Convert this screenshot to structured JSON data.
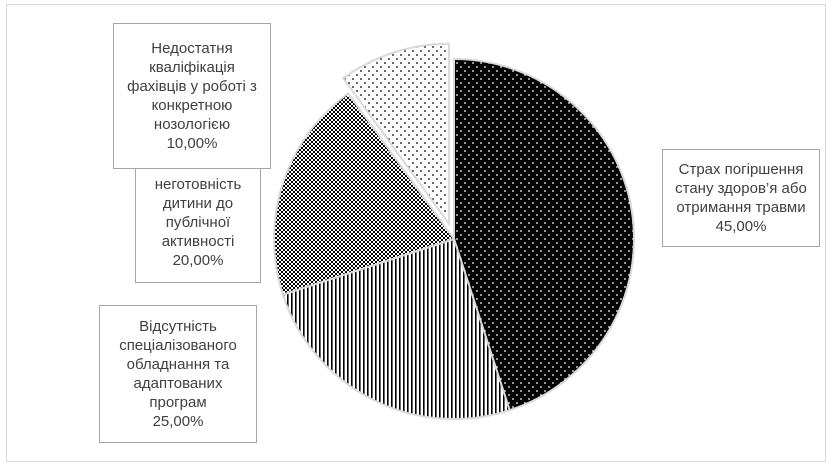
{
  "chart_data": {
    "type": "pie",
    "slices": [
      {
        "label": "Страх погіршення стану здоров’я або отримання травми",
        "value": 45.0,
        "value_label": "45,00%",
        "pattern": "dots-dark"
      },
      {
        "label": "Відсутність спеціалізованого обладнання та адаптованих програм",
        "value": 25.0,
        "value_label": "25,00%",
        "pattern": "vertical-lines"
      },
      {
        "label": "неготовність дитини до публічної активності",
        "value": 20.0,
        "value_label": "20,00%",
        "pattern": "checker"
      },
      {
        "label": "Недостатня кваліфікація фахівців у роботі з конкретною нозологією",
        "value": 10.0,
        "value_label": "10,00%",
        "pattern": "dots-light",
        "exploded": true
      }
    ],
    "start_angle_deg": 0,
    "direction": "clockwise",
    "legend": "none",
    "colors": {
      "border": "#d9d9d9",
      "label_border": "#a6a6a6",
      "text": "#404040",
      "dark": "#000000",
      "light": "#ffffff"
    }
  }
}
